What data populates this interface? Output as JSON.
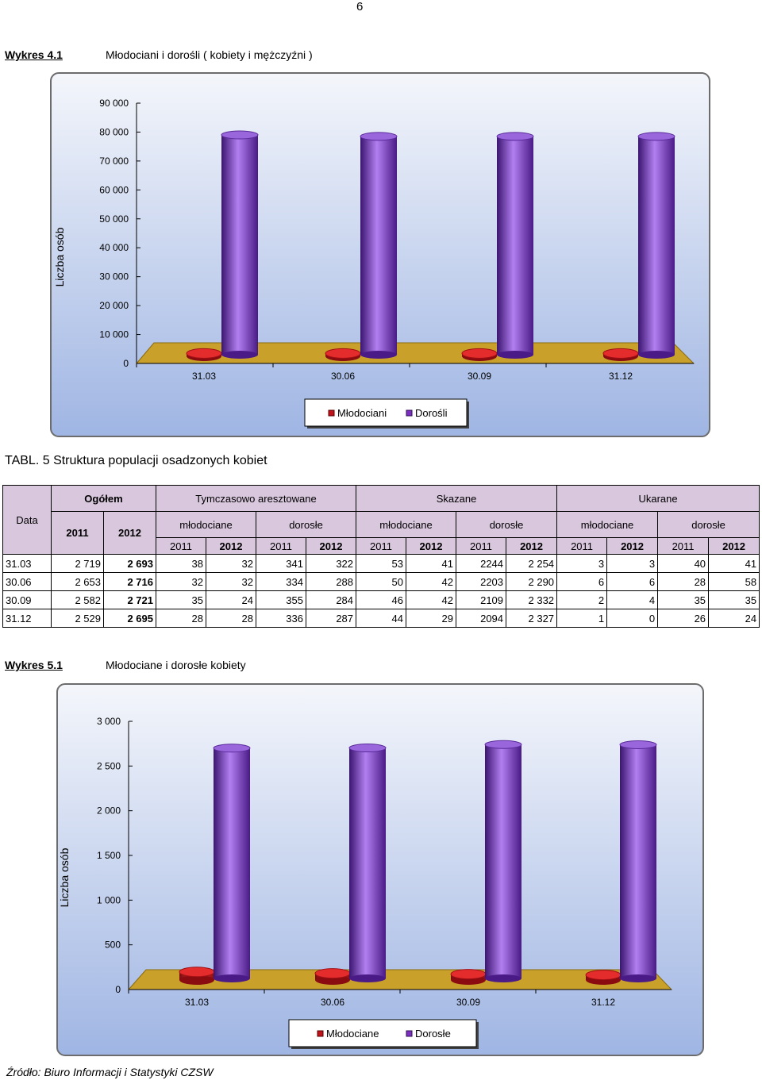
{
  "page_number": "6",
  "figure1": {
    "label": "Wykres 4.1",
    "title": "Młodociani i dorośli ( kobiety i mężczyźni )"
  },
  "table": {
    "title": "TABL. 5 Struktura populacji osadzonych kobiet",
    "col_data": "Data",
    "col_ogolem": "Ogółem",
    "col_tymczasowo": "Tymczasowo aresztowane",
    "col_skazane": "Skazane",
    "col_ukarane": "Ukarane",
    "sub_mlodociane": "młodociane",
    "sub_dorosle": "dorosłe",
    "year_2011": "2011",
    "year_2012": "2012",
    "rows": [
      {
        "date": "31.03",
        "c": [
          "2 719",
          "2 693",
          "38",
          "32",
          "341",
          "322",
          "53",
          "41",
          "2244",
          "2 254",
          "3",
          "3",
          "40",
          "41"
        ]
      },
      {
        "date": "30.06",
        "c": [
          "2 653",
          "2 716",
          "32",
          "32",
          "334",
          "288",
          "50",
          "42",
          "2203",
          "2 290",
          "6",
          "6",
          "28",
          "58"
        ]
      },
      {
        "date": "30.09",
        "c": [
          "2 582",
          "2 721",
          "35",
          "24",
          "355",
          "284",
          "46",
          "42",
          "2109",
          "2 332",
          "2",
          "4",
          "35",
          "35"
        ]
      },
      {
        "date": "31.12",
        "c": [
          "2 529",
          "2 695",
          "28",
          "28",
          "336",
          "287",
          "44",
          "29",
          "2094",
          "2 327",
          "1",
          "0",
          "26",
          "24"
        ]
      }
    ]
  },
  "figure2": {
    "label": "Wykres 5.1",
    "title": "Młodociane i dorosłe kobiety"
  },
  "source": "Źródło: Biuro Informacji i Statystyki CZSW",
  "colors": {
    "series_young": "#c0141c",
    "series_adult": "#7b2fc0",
    "floor": "#c9a12a",
    "bg_top": "#f4f6fb",
    "bg_bottom": "#9fb5e3",
    "table_header": "#d9c7dd"
  },
  "chart_data": [
    {
      "type": "bar",
      "ylabel": "Liczba osób",
      "ylim": [
        0,
        90000
      ],
      "yticks": [
        "0",
        "10 000",
        "20 000",
        "30 000",
        "40 000",
        "50 000",
        "60 000",
        "70 000",
        "80 000",
        "90 000"
      ],
      "categories": [
        "31.03",
        "30.06",
        "30.09",
        "31.12"
      ],
      "series": [
        {
          "name": "Młodociani",
          "values": [
            1000,
            1000,
            1000,
            1000
          ]
        },
        {
          "name": "Dorośli",
          "values": [
            76000,
            75500,
            75500,
            75500
          ]
        }
      ],
      "legend": "bottom"
    },
    {
      "type": "bar",
      "ylabel": "Liczba osób",
      "ylim": [
        0,
        3000
      ],
      "yticks": [
        "0",
        "500",
        "1 000",
        "1 500",
        "2 000",
        "2 500",
        "3 000"
      ],
      "categories": [
        "31.03",
        "30.06",
        "30.09",
        "31.12"
      ],
      "series": [
        {
          "name": "Młodociane",
          "values": [
            91,
            74,
            66,
            57
          ]
        },
        {
          "name": "Dorosłe",
          "values": [
            2576,
            2578,
            2616,
            2614
          ]
        }
      ],
      "legend": "bottom"
    }
  ]
}
